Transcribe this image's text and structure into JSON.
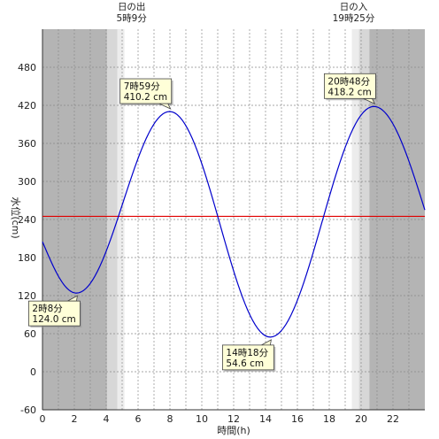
{
  "chart_data": {
    "type": "line",
    "xlabel": "時間(h)",
    "ylabel": "水位(cm)",
    "xlim": [
      0,
      24
    ],
    "ylim": [
      -60,
      540
    ],
    "x_ticks": [
      0,
      2,
      4,
      6,
      8,
      10,
      12,
      14,
      16,
      18,
      20,
      22
    ],
    "y_ticks": [
      -60,
      0,
      60,
      120,
      180,
      240,
      300,
      360,
      420,
      480
    ],
    "grid": true,
    "reference_line": {
      "value": 245,
      "color": "#e00000"
    },
    "series_color": "#0000cc",
    "sunrise": {
      "title": "日の出",
      "time": "5時9分",
      "hour": 5.15
    },
    "sunset": {
      "title": "日の入",
      "time": "19時25分",
      "hour": 19.4167
    },
    "night_color": "#b4b4b4",
    "twilight_color": "#d7d7d7",
    "twilight_light_color": "#ececec",
    "extremes": [
      {
        "hour": 2.1333,
        "value": 124.0,
        "time_label": "2時8分",
        "value_label": "124.0 cm"
      },
      {
        "hour": 7.9833,
        "value": 410.2,
        "time_label": "7時59分",
        "value_label": "410.2 cm"
      },
      {
        "hour": 14.3,
        "value": 54.6,
        "time_label": "14時18分",
        "value_label": "54.6 cm"
      },
      {
        "hour": 20.8,
        "value": 418.2,
        "time_label": "20時48分",
        "value_label": "418.2 cm"
      }
    ],
    "endpoints": [
      {
        "hour": 0,
        "value": 205
      },
      {
        "hour": 24,
        "value": 255
      }
    ]
  }
}
